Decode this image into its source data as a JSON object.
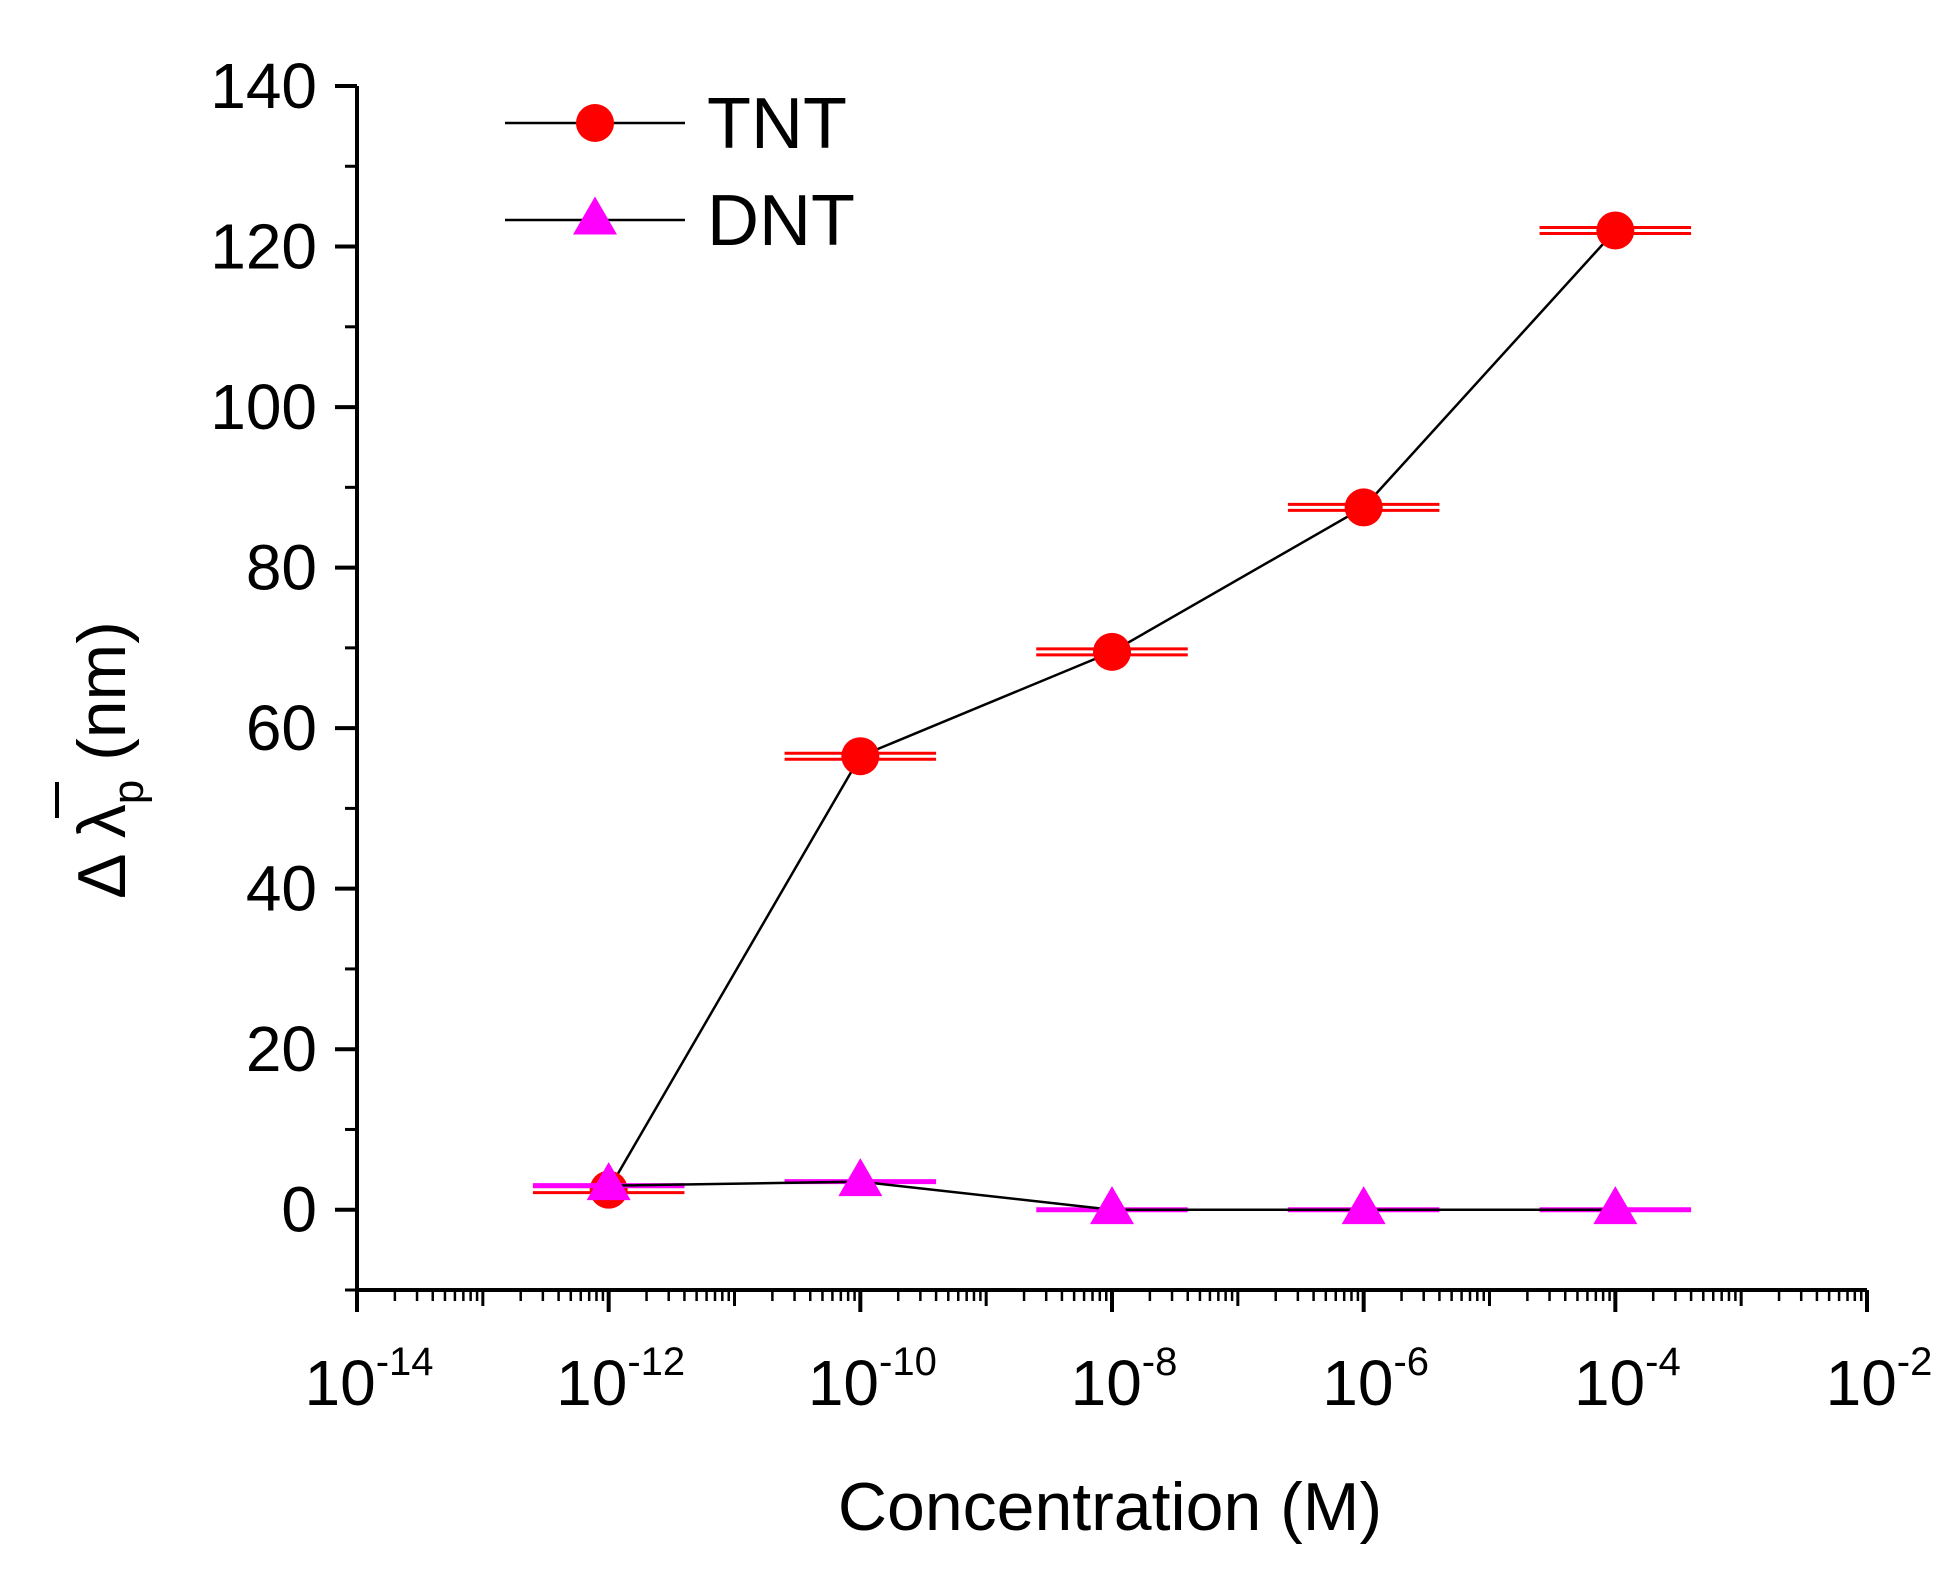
{
  "chart_data": {
    "type": "line",
    "xlabel": "Concentration (M)",
    "ylabel": {
      "prefix": "Δ ",
      "symbol": "λ",
      "subscript": "p",
      "unit": " (nm)"
    },
    "x_scale": "log",
    "xlim": [
      1e-14,
      0.01
    ],
    "ylim": [
      -10,
      140
    ],
    "x_ticks": [
      {
        "value": 1e-14,
        "base": "10",
        "exp": "-14"
      },
      {
        "value": 1e-12,
        "base": "10",
        "exp": "-12"
      },
      {
        "value": 1e-10,
        "base": "10",
        "exp": "-10"
      },
      {
        "value": 1e-08,
        "base": "10",
        "exp": "-8"
      },
      {
        "value": 1e-06,
        "base": "10",
        "exp": "-6"
      },
      {
        "value": 0.0001,
        "base": "10",
        "exp": "-4"
      },
      {
        "value": 0.01,
        "base": "10",
        "exp": "-2"
      }
    ],
    "y_ticks": [
      0,
      20,
      40,
      60,
      80,
      100,
      120,
      140
    ],
    "legend_position": "top-left",
    "series": [
      {
        "name": "TNT",
        "color": "#ff0000",
        "marker": "circle",
        "x": [
          1e-12,
          1e-10,
          1e-08,
          1e-06,
          0.0001
        ],
        "y": [
          2.5,
          56.5,
          69.5,
          87.5,
          122
        ],
        "x_err_factor": 4
      },
      {
        "name": "DNT",
        "color": "#ff00ff",
        "marker": "triangle",
        "x": [
          1e-12,
          1e-10,
          1e-08,
          1e-06,
          0.0001
        ],
        "y": [
          3,
          3.5,
          0,
          0,
          0
        ],
        "x_err_factor": 4
      }
    ]
  }
}
